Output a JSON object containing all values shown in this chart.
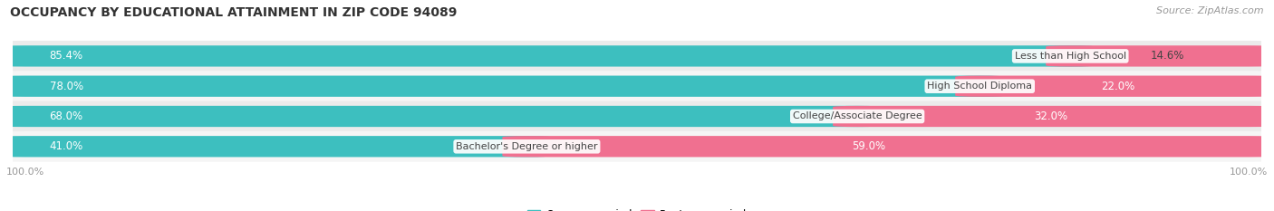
{
  "title": "OCCUPANCY BY EDUCATIONAL ATTAINMENT IN ZIP CODE 94089",
  "source": "Source: ZipAtlas.com",
  "categories": [
    "Less than High School",
    "High School Diploma",
    "College/Associate Degree",
    "Bachelor's Degree or higher"
  ],
  "owner_pct": [
    85.4,
    78.0,
    68.0,
    41.0
  ],
  "renter_pct": [
    14.6,
    22.0,
    32.0,
    59.0
  ],
  "owner_color": "#3DBFBF",
  "renter_color": "#F07090",
  "row_bg_color_even": "#EBEBEB",
  "row_bg_color_odd": "#F5F5F5",
  "title_fontsize": 10,
  "label_fontsize": 8.5,
  "cat_fontsize": 8,
  "tick_fontsize": 8,
  "source_fontsize": 8,
  "pct_fontsize": 8.5,
  "background_color": "#FFFFFF",
  "axis_label_color": "#999999",
  "cat_label_color": "#444444",
  "pct_label_color": "#FFFFFF"
}
